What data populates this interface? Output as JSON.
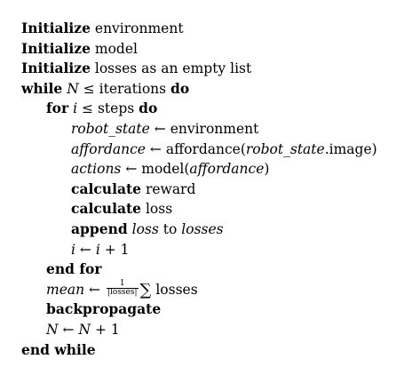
{
  "lines": {
    "l1": {
      "kw": "Initialize",
      "text": "environment"
    },
    "l2": {
      "kw": "Initialize",
      "text": "model"
    },
    "l3": {
      "kw": "Initialize",
      "text": "losses as an empty list"
    },
    "l4": {
      "kw": "while",
      "var": "N",
      "op": "≤",
      "text": "iterations",
      "kw2": "do"
    },
    "l5": {
      "kw": "for",
      "var": "i",
      "op": "≤",
      "text": "steps",
      "kw2": "do"
    },
    "l6": {
      "var": "robot_state",
      "arrow": "←",
      "text": "environment"
    },
    "l7": {
      "var": "affordance",
      "arrow": "←",
      "fn": "affordance(",
      "arg": "robot_state",
      "tail": ".image)"
    },
    "l8": {
      "var": "actions",
      "arrow": "←",
      "fn": "model(",
      "arg": "affordance",
      "tail": ")"
    },
    "l9": {
      "kw": "calculate",
      "text": "reward"
    },
    "l10": {
      "kw": "calculate",
      "text": "loss"
    },
    "l11": {
      "kw": "append",
      "var1": "loss",
      "mid": "to",
      "var2": "losses"
    },
    "l12": {
      "var": "i",
      "arrow": "←",
      "expr_var": "i",
      "expr_tail": "+ 1"
    },
    "l13": {
      "kw": "end for"
    },
    "l14": {
      "var": "mean",
      "arrow": "←",
      "frac_num": "1",
      "frac_den": "|losses|",
      "sum": "∑",
      "text": "losses"
    },
    "l15": {
      "kw": "backpropagate"
    },
    "l16": {
      "var": "N",
      "arrow": "←",
      "expr_var": "N",
      "expr_tail": "+ 1"
    },
    "l17": {
      "kw": "end while"
    }
  }
}
